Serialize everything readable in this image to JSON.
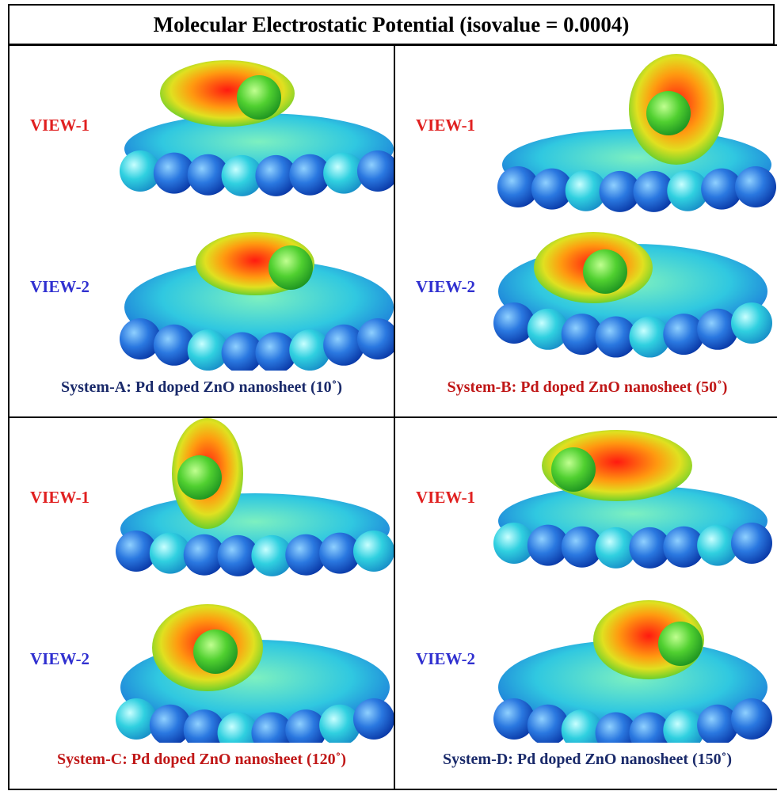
{
  "header": {
    "title": "Molecular Electrostatic Potential (isovalue = 0.0004)"
  },
  "panels": [
    {
      "view1": "VIEW-1",
      "view2": "VIEW-2",
      "caption": "System-A: Pd doped ZnO nanosheet (10˚)"
    },
    {
      "view1": "VIEW-1",
      "view2": "VIEW-2",
      "caption": "System-B: Pd doped ZnO nanosheet (50˚)"
    },
    {
      "view1": "VIEW-1",
      "view2": "VIEW-2",
      "caption": "System-C: Pd doped ZnO nanosheet (120˚)"
    },
    {
      "view1": "VIEW-1",
      "view2": "VIEW-2",
      "caption": "System-D: Pd doped ZnO nanosheet (150˚)"
    }
  ]
}
